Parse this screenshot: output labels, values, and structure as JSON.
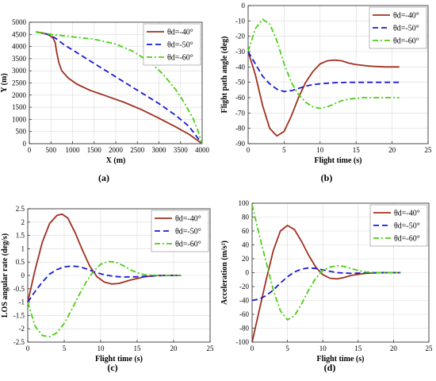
{
  "chart_data": [
    {
      "type": "line",
      "caption": "(a)",
      "xlabel": "X (m)",
      "ylabel": "Y (m)",
      "xlim": [
        0,
        4000
      ],
      "ylim": [
        0,
        5000
      ],
      "xticks": [
        0,
        500,
        1000,
        1500,
        2000,
        2500,
        3000,
        3500,
        4000
      ],
      "yticks": [
        0,
        500,
        1000,
        1500,
        2000,
        2500,
        3000,
        3500,
        4000,
        4500,
        5000
      ],
      "grid": true,
      "legend_position": "top-right",
      "series": [
        {
          "name": "θd=-40°",
          "color": "#a0301e",
          "dash": "solid",
          "points": [
            [
              150,
              4600
            ],
            [
              300,
              4560
            ],
            [
              450,
              4480
            ],
            [
              550,
              4350
            ],
            [
              600,
              4150
            ],
            [
              630,
              3800
            ],
            [
              680,
              3350
            ],
            [
              750,
              3000
            ],
            [
              900,
              2700
            ],
            [
              1100,
              2450
            ],
            [
              1400,
              2200
            ],
            [
              1800,
              1950
            ],
            [
              2200,
              1700
            ],
            [
              2600,
              1400
            ],
            [
              3000,
              1050
            ],
            [
              3400,
              680
            ],
            [
              3700,
              380
            ],
            [
              4000,
              0
            ]
          ]
        },
        {
          "name": "θd=-50°",
          "color": "#1a1ad6",
          "dash": "dashed",
          "points": [
            [
              150,
              4600
            ],
            [
              400,
              4520
            ],
            [
              600,
              4350
            ],
            [
              800,
              4080
            ],
            [
              1100,
              3750
            ],
            [
              1500,
              3300
            ],
            [
              2000,
              2750
            ],
            [
              2500,
              2200
            ],
            [
              3000,
              1650
            ],
            [
              3400,
              1150
            ],
            [
              3700,
              700
            ],
            [
              4000,
              0
            ]
          ]
        },
        {
          "name": "θd=-60°",
          "color": "#49cf12",
          "dash": "dashdot",
          "points": [
            [
              150,
              4600
            ],
            [
              500,
              4500
            ],
            [
              1000,
              4400
            ],
            [
              1500,
              4300
            ],
            [
              2000,
              4100
            ],
            [
              2400,
              3800
            ],
            [
              2800,
              3350
            ],
            [
              3100,
              2850
            ],
            [
              3400,
              2200
            ],
            [
              3600,
              1650
            ],
            [
              3800,
              1000
            ],
            [
              3900,
              550
            ],
            [
              4000,
              0
            ]
          ]
        }
      ]
    },
    {
      "type": "line",
      "caption": "(b)",
      "xlabel": "Flight time (s)",
      "ylabel": "Flight path angle (deg)",
      "xlim": [
        0,
        25
      ],
      "ylim": [
        -90,
        0
      ],
      "xticks": [
        0,
        5,
        10,
        15,
        20,
        25
      ],
      "yticks": [
        -90,
        -80,
        -70,
        -60,
        -50,
        -40,
        -30,
        -20,
        -10,
        0
      ],
      "grid": true,
      "legend_position": "top-right",
      "series": [
        {
          "name": "θd=-40°",
          "color": "#a0301e",
          "dash": "solid",
          "points": [
            [
              0,
              -30
            ],
            [
              1,
              -45
            ],
            [
              2,
              -65
            ],
            [
              3,
              -80
            ],
            [
              4,
              -85
            ],
            [
              5,
              -82
            ],
            [
              6,
              -72
            ],
            [
              7,
              -60
            ],
            [
              8,
              -50
            ],
            [
              9,
              -43
            ],
            [
              10,
              -38
            ],
            [
              11,
              -36
            ],
            [
              12,
              -35.5
            ],
            [
              13,
              -36
            ],
            [
              14,
              -37.5
            ],
            [
              15,
              -38.5
            ],
            [
              17,
              -39.5
            ],
            [
              19,
              -40
            ],
            [
              21,
              -40
            ]
          ]
        },
        {
          "name": "θd=-50°",
          "color": "#1a1ad6",
          "dash": "dashed",
          "points": [
            [
              0,
              -30
            ],
            [
              1,
              -38
            ],
            [
              2,
              -46
            ],
            [
              3,
              -51
            ],
            [
              4,
              -54.5
            ],
            [
              5,
              -56
            ],
            [
              6,
              -55.5
            ],
            [
              7,
              -54
            ],
            [
              8,
              -52.5
            ],
            [
              9,
              -51.5
            ],
            [
              10,
              -51
            ],
            [
              12,
              -50.3
            ],
            [
              14,
              -50
            ],
            [
              17,
              -50
            ],
            [
              21,
              -50
            ]
          ]
        },
        {
          "name": "θd=-60°",
          "color": "#49cf12",
          "dash": "dashdot",
          "points": [
            [
              0,
              -30
            ],
            [
              1,
              -15
            ],
            [
              2,
              -9
            ],
            [
              3,
              -12
            ],
            [
              4,
              -23
            ],
            [
              5,
              -38
            ],
            [
              6,
              -50
            ],
            [
              7,
              -58
            ],
            [
              8,
              -63
            ],
            [
              9,
              -66
            ],
            [
              10,
              -67
            ],
            [
              11,
              -66
            ],
            [
              12,
              -64
            ],
            [
              13,
              -62
            ],
            [
              14,
              -61
            ],
            [
              16,
              -60
            ],
            [
              18,
              -60
            ],
            [
              21,
              -60
            ]
          ]
        }
      ]
    },
    {
      "type": "line",
      "caption": "(c)",
      "xlabel": "Flight time (s)",
      "ylabel": "LOS angular rate (deg/s)",
      "xlim": [
        0,
        25
      ],
      "ylim": [
        -2.5,
        2.5
      ],
      "xticks": [
        0,
        5,
        10,
        15,
        20,
        25
      ],
      "yticks": [
        -2.5,
        -2,
        -1.5,
        -1,
        -0.5,
        0,
        0.5,
        1,
        1.5,
        2,
        2.5
      ],
      "grid": true,
      "legend_position": "top-right",
      "series": [
        {
          "name": "θd=-40°",
          "color": "#a0301e",
          "dash": "solid",
          "points": [
            [
              0,
              -1
            ],
            [
              1,
              0.2
            ],
            [
              2,
              1.25
            ],
            [
              3,
              1.95
            ],
            [
              4,
              2.25
            ],
            [
              4.7,
              2.3
            ],
            [
              5.5,
              2.15
            ],
            [
              6.5,
              1.6
            ],
            [
              7.5,
              0.95
            ],
            [
              8.5,
              0.35
            ],
            [
              9.5,
              -0.05
            ],
            [
              10.5,
              -0.25
            ],
            [
              11.5,
              -0.32
            ],
            [
              12.5,
              -0.3
            ],
            [
              14,
              -0.18
            ],
            [
              16,
              -0.05
            ],
            [
              18,
              0
            ],
            [
              21,
              0
            ]
          ]
        },
        {
          "name": "θd=-50°",
          "color": "#1a1ad6",
          "dash": "dashed",
          "points": [
            [
              0,
              -1
            ],
            [
              1,
              -0.6
            ],
            [
              2,
              -0.25
            ],
            [
              3,
              0.05
            ],
            [
              4,
              0.22
            ],
            [
              5,
              0.32
            ],
            [
              6,
              0.35
            ],
            [
              7,
              0.33
            ],
            [
              8,
              0.25
            ],
            [
              9,
              0.15
            ],
            [
              10,
              0.06
            ],
            [
              11,
              0
            ],
            [
              12,
              -0.04
            ],
            [
              13,
              -0.06
            ],
            [
              15,
              -0.05
            ],
            [
              17,
              -0.02
            ],
            [
              19,
              0
            ],
            [
              21,
              0
            ]
          ]
        },
        {
          "name": "θd=-60°",
          "color": "#49cf12",
          "dash": "dashdot",
          "points": [
            [
              0,
              -1
            ],
            [
              1,
              -1.9
            ],
            [
              2,
              -2.25
            ],
            [
              3,
              -2.3
            ],
            [
              4,
              -2.15
            ],
            [
              5,
              -1.8
            ],
            [
              6,
              -1.3
            ],
            [
              7,
              -0.75
            ],
            [
              8,
              -0.25
            ],
            [
              9,
              0.15
            ],
            [
              10,
              0.42
            ],
            [
              11,
              0.52
            ],
            [
              12,
              0.5
            ],
            [
              13,
              0.38
            ],
            [
              14,
              0.22
            ],
            [
              15,
              0.1
            ],
            [
              16,
              0.03
            ],
            [
              18,
              0
            ],
            [
              21,
              0
            ]
          ]
        }
      ]
    },
    {
      "type": "line",
      "caption": "(d)",
      "xlabel": "Flight time (s)",
      "ylabel": "Acceleration (m/s²)",
      "xlim": [
        0,
        25
      ],
      "ylim": [
        -100,
        100
      ],
      "xticks": [
        0,
        5,
        10,
        15,
        20,
        25
      ],
      "yticks": [
        -100,
        -80,
        -60,
        -40,
        -20,
        0,
        20,
        40,
        60,
        80,
        100
      ],
      "grid": true,
      "legend_position": "top-right",
      "series": [
        {
          "name": "θd=-40°",
          "color": "#a0301e",
          "dash": "solid",
          "points": [
            [
              0,
              -100
            ],
            [
              1,
              -55
            ],
            [
              2,
              -10
            ],
            [
              3,
              32
            ],
            [
              4,
              60
            ],
            [
              5,
              68
            ],
            [
              6,
              62
            ],
            [
              7,
              45
            ],
            [
              8,
              25
            ],
            [
              9,
              8
            ],
            [
              10,
              -3
            ],
            [
              11,
              -8
            ],
            [
              12,
              -9
            ],
            [
              13,
              -7
            ],
            [
              14,
              -4
            ],
            [
              16,
              -1
            ],
            [
              18,
              0
            ],
            [
              21,
              0
            ]
          ]
        },
        {
          "name": "θd=-50°",
          "color": "#1a1ad6",
          "dash": "dashed",
          "points": [
            [
              0,
              -40
            ],
            [
              1,
              -38
            ],
            [
              2,
              -33
            ],
            [
              3,
              -25
            ],
            [
              4,
              -15
            ],
            [
              5,
              -6
            ],
            [
              6,
              1
            ],
            [
              7,
              5
            ],
            [
              8,
              7
            ],
            [
              9,
              6
            ],
            [
              10,
              4
            ],
            [
              11,
              2
            ],
            [
              12,
              0
            ],
            [
              14,
              -1
            ],
            [
              16,
              -0.5
            ],
            [
              18,
              0
            ],
            [
              21,
              0
            ]
          ]
        },
        {
          "name": "θd=-60°",
          "color": "#49cf12",
          "dash": "dashdot",
          "points": [
            [
              0,
              98
            ],
            [
              1,
              55
            ],
            [
              2,
              15
            ],
            [
              3,
              -25
            ],
            [
              4,
              -55
            ],
            [
              5,
              -68
            ],
            [
              6,
              -62
            ],
            [
              7,
              -45
            ],
            [
              8,
              -25
            ],
            [
              9,
              -8
            ],
            [
              10,
              3
            ],
            [
              11,
              8
            ],
            [
              12,
              10
            ],
            [
              13,
              9
            ],
            [
              14,
              6
            ],
            [
              15,
              3
            ],
            [
              16,
              1
            ],
            [
              18,
              0
            ],
            [
              21,
              0
            ]
          ]
        }
      ]
    }
  ]
}
